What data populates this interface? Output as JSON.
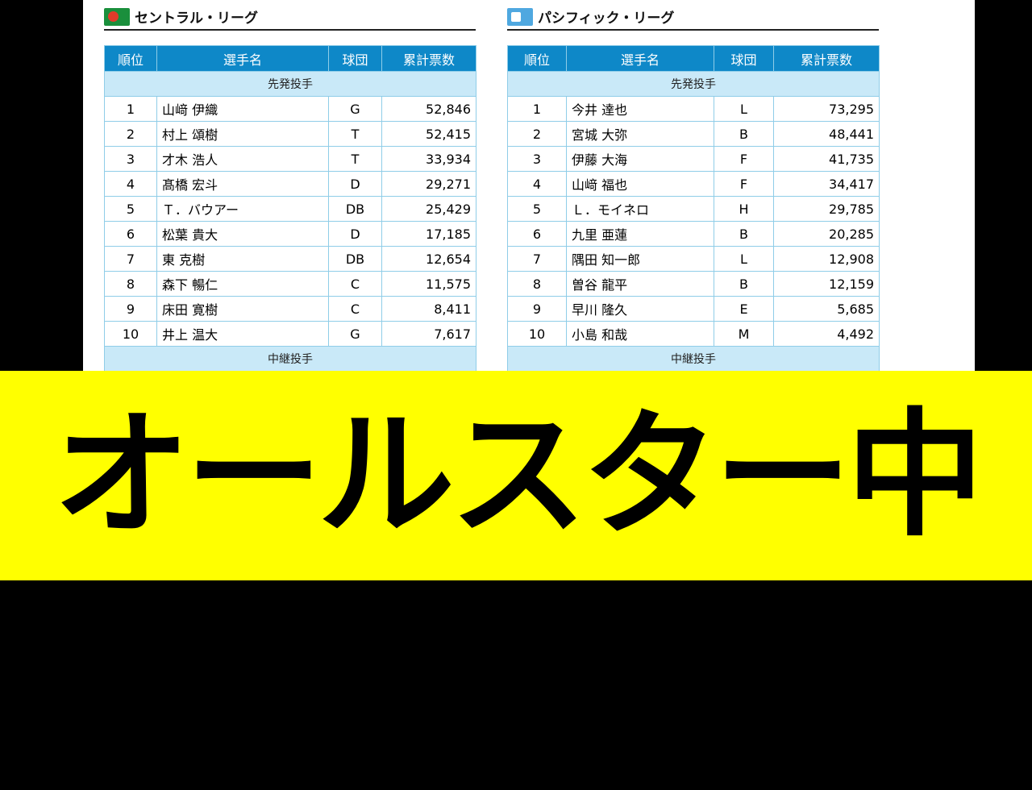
{
  "headers": [
    "順位",
    "選手名",
    "球団",
    "累計票数"
  ],
  "central": {
    "title": "セントラル・リーグ",
    "section": "先発投手",
    "next_section": "中継投手",
    "rows": [
      {
        "rank": "1",
        "name": "山﨑 伊織",
        "team": "G",
        "votes": "52,846"
      },
      {
        "rank": "2",
        "name": "村上 頌樹",
        "team": "T",
        "votes": "52,415"
      },
      {
        "rank": "3",
        "name": "才木 浩人",
        "team": "T",
        "votes": "33,934"
      },
      {
        "rank": "4",
        "name": "髙橋 宏斗",
        "team": "D",
        "votes": "29,271"
      },
      {
        "rank": "5",
        "name": "Ｔ．バウアー",
        "team": "DB",
        "votes": "25,429"
      },
      {
        "rank": "6",
        "name": "松葉 貴大",
        "team": "D",
        "votes": "17,185"
      },
      {
        "rank": "7",
        "name": "東 克樹",
        "team": "DB",
        "votes": "12,654"
      },
      {
        "rank": "8",
        "name": "森下 暢仁",
        "team": "C",
        "votes": "11,575"
      },
      {
        "rank": "9",
        "name": "床田 寛樹",
        "team": "C",
        "votes": "8,411"
      },
      {
        "rank": "10",
        "name": "井上 温大",
        "team": "G",
        "votes": "7,617"
      }
    ]
  },
  "pacific": {
    "title": "パシフィック・リーグ",
    "section": "先発投手",
    "next_section": "中継投手",
    "rows": [
      {
        "rank": "1",
        "name": "今井 達也",
        "team": "L",
        "votes": "73,295"
      },
      {
        "rank": "2",
        "name": "宮城 大弥",
        "team": "B",
        "votes": "48,441"
      },
      {
        "rank": "3",
        "name": "伊藤 大海",
        "team": "F",
        "votes": "41,735"
      },
      {
        "rank": "4",
        "name": "山﨑 福也",
        "team": "F",
        "votes": "34,417"
      },
      {
        "rank": "5",
        "name": "Ｌ．モイネロ",
        "team": "H",
        "votes": "29,785"
      },
      {
        "rank": "6",
        "name": "九里 亜蓮",
        "team": "B",
        "votes": "20,285"
      },
      {
        "rank": "7",
        "name": "隅田 知一郎",
        "team": "L",
        "votes": "12,908"
      },
      {
        "rank": "8",
        "name": "曽谷 龍平",
        "team": "B",
        "votes": "12,159"
      },
      {
        "rank": "9",
        "name": "早川 隆久",
        "team": "E",
        "votes": "5,685"
      },
      {
        "rank": "10",
        "name": "小島 和哉",
        "team": "M",
        "votes": "4,492"
      }
    ]
  },
  "banner": {
    "text": "オールスター中間発表"
  },
  "colors": {
    "header_bg": "#0e88c8",
    "section_bg": "#c9e9f8",
    "border": "#8fcde8",
    "banner_bg": "#ffff00"
  }
}
